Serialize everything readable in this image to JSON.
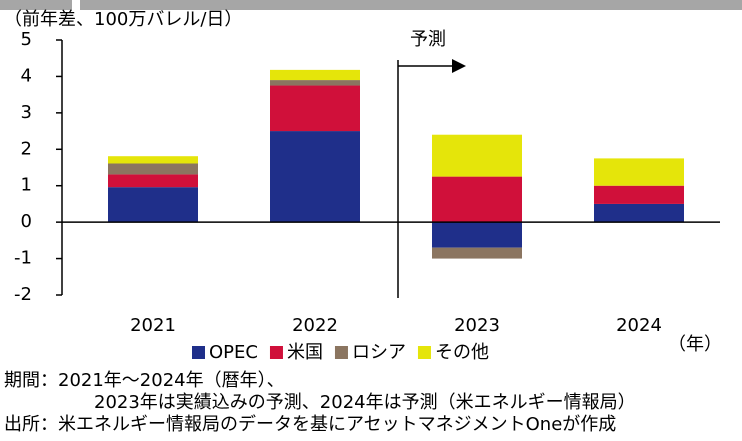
{
  "chart_data": {
    "type": "bar",
    "stacked": true,
    "y_axis_label": "（前年差、100万バレル/日）",
    "x_axis_label": "（年）",
    "annotation": "予測",
    "categories": [
      "2021",
      "2022",
      "2023",
      "2024"
    ],
    "series": [
      {
        "name": "OPEC",
        "color": "#1f2f8a",
        "values": [
          0.96,
          2.5,
          -0.7,
          0.5
        ]
      },
      {
        "name": "米国",
        "color": "#d0103a",
        "values": [
          0.35,
          1.25,
          1.25,
          0.5
        ]
      },
      {
        "name": "ロシア",
        "color": "#8b7560",
        "values": [
          0.3,
          0.15,
          -0.3,
          0
        ]
      },
      {
        "name": "その他",
        "color": "#e5e50a",
        "values": [
          0.2,
          0.28,
          1.15,
          0.75
        ]
      }
    ],
    "ylim": [
      -2,
      5
    ],
    "yticks": [
      -2,
      -1,
      0,
      1,
      2,
      3,
      4,
      5
    ],
    "negative_tick_color": "#e00000",
    "notes": [
      "期間：2021年～2024年（暦年）、",
      "2023年は実績込みの予測、2024年は予測（米エネルギー情報局）",
      "出所：米エネルギー情報局のデータを基にアセットマネジメントOneが作成"
    ]
  }
}
